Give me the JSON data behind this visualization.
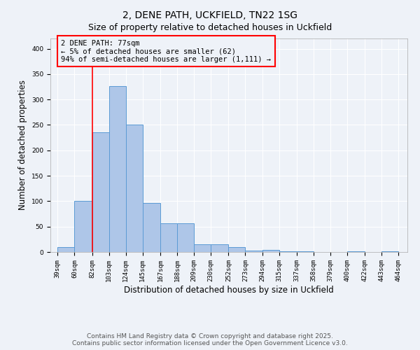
{
  "title_line1": "2, DENE PATH, UCKFIELD, TN22 1SG",
  "title_line2": "Size of property relative to detached houses in Uckfield",
  "xlabel": "Distribution of detached houses by size in Uckfield",
  "ylabel": "Number of detached properties",
  "bar_color": "#aec6e8",
  "bar_edge_color": "#5b9bd5",
  "bar_left_edges": [
    39,
    60,
    82,
    103,
    124,
    145,
    167,
    188,
    209,
    230,
    252,
    273,
    294,
    315,
    337,
    358,
    379,
    400,
    422,
    443
  ],
  "bar_widths": [
    21,
    22,
    21,
    21,
    21,
    22,
    21,
    21,
    21,
    22,
    21,
    21,
    21,
    22,
    21,
    21,
    21,
    22,
    21,
    21
  ],
  "bar_heights": [
    10,
    101,
    236,
    327,
    250,
    96,
    57,
    57,
    15,
    15,
    9,
    3,
    4,
    2,
    1,
    0,
    0,
    1,
    0,
    1
  ],
  "tick_labels": [
    "39sqm",
    "60sqm",
    "82sqm",
    "103sqm",
    "124sqm",
    "145sqm",
    "167sqm",
    "188sqm",
    "209sqm",
    "230sqm",
    "252sqm",
    "273sqm",
    "294sqm",
    "315sqm",
    "337sqm",
    "358sqm",
    "379sqm",
    "400sqm",
    "422sqm",
    "443sqm",
    "464sqm"
  ],
  "tick_positions": [
    39,
    60,
    82,
    103,
    124,
    145,
    167,
    188,
    209,
    230,
    252,
    273,
    294,
    315,
    337,
    358,
    379,
    400,
    422,
    443,
    464
  ],
  "red_line_x": 82,
  "annotation_text": "2 DENE PATH: 77sqm\n← 5% of detached houses are smaller (62)\n94% of semi-detached houses are larger (1,111) →",
  "ylim": [
    0,
    420
  ],
  "footer_line1": "Contains HM Land Registry data © Crown copyright and database right 2025.",
  "footer_line2": "Contains public sector information licensed under the Open Government Licence v3.0.",
  "background_color": "#eef2f8",
  "grid_color": "#ffffff",
  "title_fontsize": 10,
  "axis_label_fontsize": 8.5,
  "tick_fontsize": 6.5,
  "annotation_fontsize": 7.5,
  "footer_fontsize": 6.5
}
